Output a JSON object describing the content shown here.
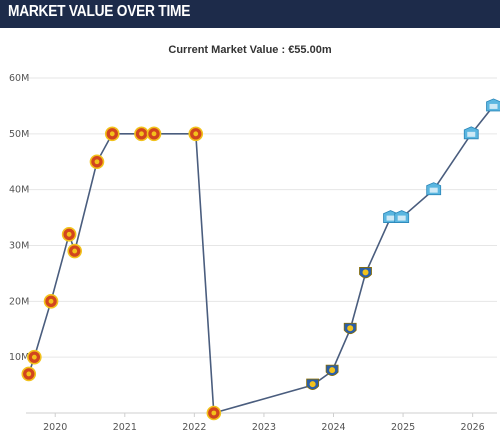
{
  "header": {
    "title": "MARKET VALUE OVER TIME"
  },
  "chart_data": {
    "type": "line",
    "title": "Current Market Value : €55.00m",
    "xlabel": "",
    "ylabel": "",
    "x_ticks": [
      "2020",
      "2021",
      "2022",
      "2023",
      "2024",
      "2025",
      "2026"
    ],
    "y_ticks": [
      "10M",
      "20M",
      "30M",
      "40M",
      "50M",
      "60M"
    ],
    "ylim": [
      0,
      60
    ],
    "xlim": [
      2019.58,
      2026.35
    ],
    "grid": "horizontal",
    "line_color": "#4a5d7e",
    "club_colors": {
      "red_club": "#d2451e",
      "yellow_club": "#2a5ea8",
      "light_blue_club": "#5ab6e0"
    },
    "points": [
      {
        "x": 2019.62,
        "y": 7,
        "club": "red_club"
      },
      {
        "x": 2019.7,
        "y": 10,
        "club": "red_club"
      },
      {
        "x": 2019.94,
        "y": 20,
        "club": "red_club"
      },
      {
        "x": 2020.2,
        "y": 32,
        "club": "red_club"
      },
      {
        "x": 2020.28,
        "y": 29,
        "club": "red_club"
      },
      {
        "x": 2020.6,
        "y": 45,
        "club": "red_club"
      },
      {
        "x": 2020.82,
        "y": 50,
        "club": "red_club"
      },
      {
        "x": 2021.24,
        "y": 50,
        "club": "red_club"
      },
      {
        "x": 2021.42,
        "y": 50,
        "club": "red_club"
      },
      {
        "x": 2022.02,
        "y": 50,
        "club": "red_club"
      },
      {
        "x": 2022.28,
        "y": 0,
        "club": "red_club"
      },
      {
        "x": 2023.7,
        "y": 5,
        "club": "yellow_club"
      },
      {
        "x": 2023.98,
        "y": 7.5,
        "club": "yellow_club"
      },
      {
        "x": 2024.24,
        "y": 15,
        "club": "yellow_club"
      },
      {
        "x": 2024.46,
        "y": 25,
        "club": "yellow_club"
      },
      {
        "x": 2024.82,
        "y": 35,
        "club": "light_blue_club"
      },
      {
        "x": 2024.98,
        "y": 35,
        "club": "light_blue_club"
      },
      {
        "x": 2025.44,
        "y": 40,
        "club": "light_blue_club"
      },
      {
        "x": 2025.98,
        "y": 50,
        "club": "light_blue_club"
      },
      {
        "x": 2026.3,
        "y": 55,
        "club": "light_blue_club"
      }
    ]
  }
}
